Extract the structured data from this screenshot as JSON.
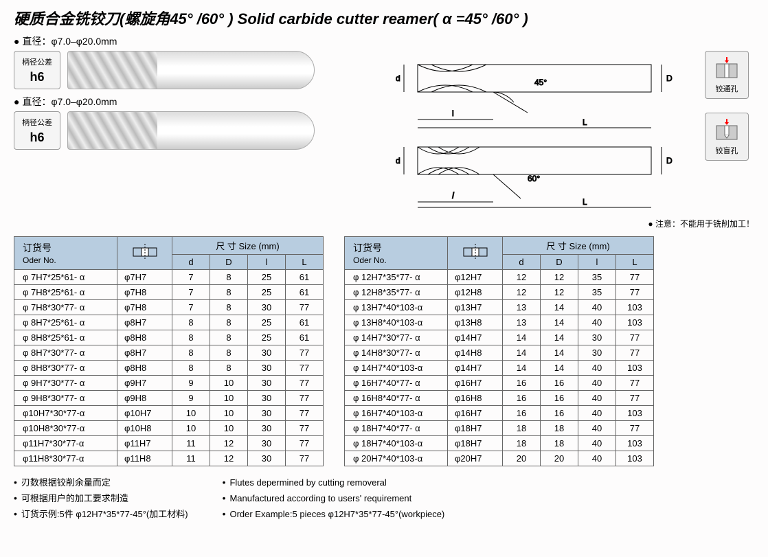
{
  "title": "硬质合金铣铰刀(螺旋角45° /60° ) Solid carbide cutter reamer( α =45° /60° )",
  "diameter1": "直径：φ7.0–φ20.0mm",
  "diameter2": "直径：φ7.0–φ20.0mm",
  "tolerance": {
    "label": "柄径公差",
    "value": "h6"
  },
  "diagram": {
    "angle1": "45°",
    "angle2": "60°",
    "d_label": "d",
    "D_label": "D",
    "l_label": "l",
    "L_label": "L"
  },
  "side_icons": {
    "through": "铰通孔",
    "blind": "铰盲孔"
  },
  "note": "● 注意：不能用于铣削加工！",
  "table_headers": {
    "order": "订货号",
    "order_en": "Oder No.",
    "size": "尺 寸 Size (mm)",
    "d": "d",
    "D": "D",
    "l": "l",
    "L": "L"
  },
  "table1": [
    {
      "order": "φ 7H7*25*61- α",
      "tol": "φ7H7",
      "d": "7",
      "D": "8",
      "l": "25",
      "L": "61"
    },
    {
      "order": "φ 7H8*25*61- α",
      "tol": "φ7H8",
      "d": "7",
      "D": "8",
      "l": "25",
      "L": "61"
    },
    {
      "order": "φ 7H8*30*77- α",
      "tol": "φ7H8",
      "d": "7",
      "D": "8",
      "l": "30",
      "L": "77"
    },
    {
      "order": "φ 8H7*25*61- α",
      "tol": "φ8H7",
      "d": "8",
      "D": "8",
      "l": "25",
      "L": "61"
    },
    {
      "order": "φ 8H8*25*61- α",
      "tol": "φ8H8",
      "d": "8",
      "D": "8",
      "l": "25",
      "L": "61"
    },
    {
      "order": "φ 8H7*30*77- α",
      "tol": "φ8H7",
      "d": "8",
      "D": "8",
      "l": "30",
      "L": "77"
    },
    {
      "order": "φ 8H8*30*77- α",
      "tol": "φ8H8",
      "d": "8",
      "D": "8",
      "l": "30",
      "L": "77"
    },
    {
      "order": "φ 9H7*30*77- α",
      "tol": "φ9H7",
      "d": "9",
      "D": "10",
      "l": "30",
      "L": "77"
    },
    {
      "order": "φ 9H8*30*77- α",
      "tol": "φ9H8",
      "d": "9",
      "D": "10",
      "l": "30",
      "L": "77"
    },
    {
      "order": "φ10H7*30*77-α",
      "tol": "φ10H7",
      "d": "10",
      "D": "10",
      "l": "30",
      "L": "77"
    },
    {
      "order": "φ10H8*30*77-α",
      "tol": "φ10H8",
      "d": "10",
      "D": "10",
      "l": "30",
      "L": "77"
    },
    {
      "order": "φ11H7*30*77-α",
      "tol": "φ11H7",
      "d": "11",
      "D": "12",
      "l": "30",
      "L": "77"
    },
    {
      "order": "φ11H8*30*77-α",
      "tol": "φ11H8",
      "d": "11",
      "D": "12",
      "l": "30",
      "L": "77"
    }
  ],
  "table2": [
    {
      "order": "φ 12H7*35*77- α",
      "tol": "φ12H7",
      "d": "12",
      "D": "12",
      "l": "35",
      "L": "77"
    },
    {
      "order": "φ 12H8*35*77- α",
      "tol": "φ12H8",
      "d": "12",
      "D": "12",
      "l": "35",
      "L": "77"
    },
    {
      "order": "φ 13H7*40*103-α",
      "tol": "φ13H7",
      "d": "13",
      "D": "14",
      "l": "40",
      "L": "103"
    },
    {
      "order": "φ 13H8*40*103-α",
      "tol": "φ13H8",
      "d": "13",
      "D": "14",
      "l": "40",
      "L": "103"
    },
    {
      "order": "φ 14H7*30*77- α",
      "tol": "φ14H7",
      "d": "14",
      "D": "14",
      "l": "30",
      "L": "77"
    },
    {
      "order": "φ 14H8*30*77- α",
      "tol": "φ14H8",
      "d": "14",
      "D": "14",
      "l": "30",
      "L": "77"
    },
    {
      "order": "φ 14H7*40*103-α",
      "tol": "φ14H7",
      "d": "14",
      "D": "14",
      "l": "40",
      "L": "103"
    },
    {
      "order": "φ 16H7*40*77- α",
      "tol": "φ16H7",
      "d": "16",
      "D": "16",
      "l": "40",
      "L": "77"
    },
    {
      "order": "φ 16H8*40*77- α",
      "tol": "φ16H8",
      "d": "16",
      "D": "16",
      "l": "40",
      "L": "77"
    },
    {
      "order": "φ 16H7*40*103-α",
      "tol": "φ16H7",
      "d": "16",
      "D": "16",
      "l": "40",
      "L": "103"
    },
    {
      "order": "φ 18H7*40*77- α",
      "tol": "φ18H7",
      "d": "18",
      "D": "18",
      "l": "40",
      "L": "77"
    },
    {
      "order": "φ 18H7*40*103-α",
      "tol": "φ18H7",
      "d": "18",
      "D": "18",
      "l": "40",
      "L": "103"
    },
    {
      "order": "φ 20H7*40*103-α",
      "tol": "φ20H7",
      "d": "20",
      "D": "20",
      "l": "40",
      "L": "103"
    }
  ],
  "footer": {
    "cn": [
      "刃数根据铰削余量而定",
      "可根据用户的加工要求制造",
      "订货示例:5件 φ12H7*35*77-45°(加工材料)"
    ],
    "en": [
      "Flutes depermined by cutting removeral",
      "Manufactured according to users' requirement",
      "Order Example:5 pieces φ12H7*35*77-45°(workpiece)"
    ]
  },
  "colors": {
    "header_bg": "#b8cde0",
    "border": "#666666",
    "text": "#000000"
  }
}
